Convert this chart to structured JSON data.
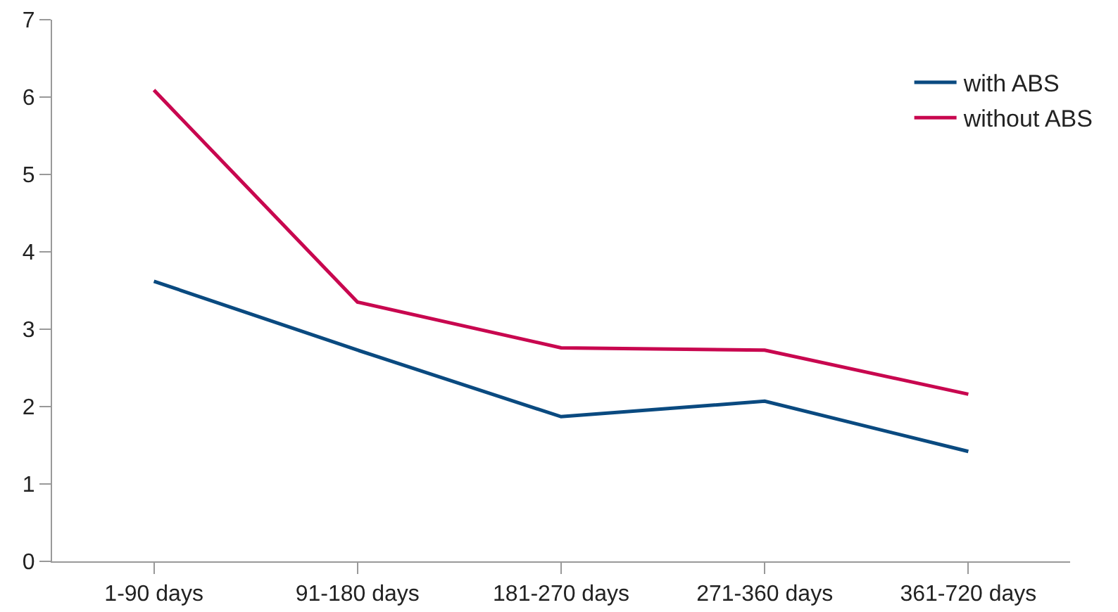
{
  "chart_data": {
    "type": "line",
    "categories": [
      "1-90 days",
      "91-180 days",
      "181-270 days",
      "271-360 days",
      "361-720 days"
    ],
    "series": [
      {
        "name": "with ABS",
        "color": "#0a4a80",
        "values": [
          3.62,
          2.73,
          1.87,
          2.07,
          1.42
        ]
      },
      {
        "name": "without ABS",
        "color": "#c8074f",
        "values": [
          6.09,
          3.35,
          2.76,
          2.73,
          2.16
        ]
      }
    ],
    "ylim": [
      0,
      7
    ],
    "yticks": [
      0,
      1,
      2,
      3,
      4,
      5,
      6,
      7
    ],
    "grid": false,
    "legend": "top right",
    "marker": "none",
    "line_style": "solid"
  }
}
